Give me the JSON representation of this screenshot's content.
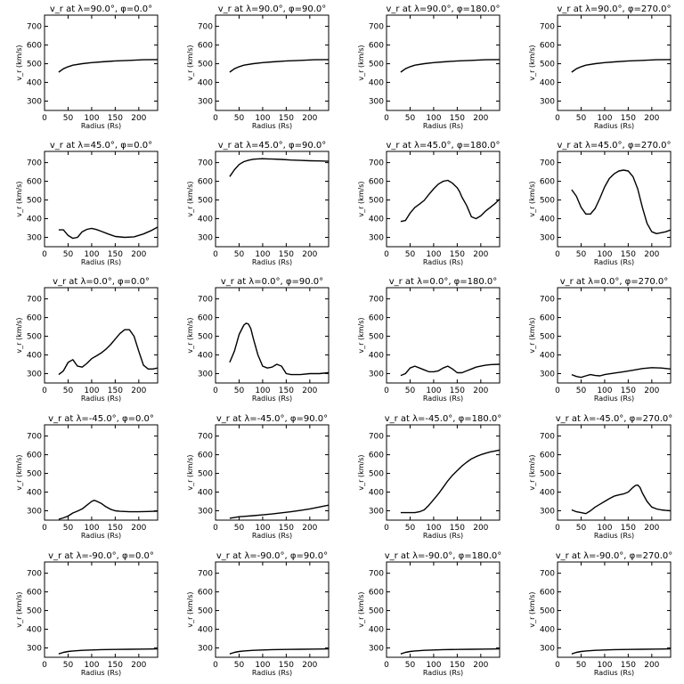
{
  "chart_data": [
    {
      "type": "line",
      "title": "v_r at λ=90.0°, φ=0.0°",
      "xlabel": "Radius (Rs)",
      "ylabel": "v_r (km/s)",
      "xlim": [
        0,
        240
      ],
      "ylim": [
        250,
        760
      ],
      "xticks": [
        0,
        50,
        100,
        150,
        200
      ],
      "yticks": [
        300,
        400,
        500,
        600,
        700
      ],
      "x": [
        30,
        40,
        50,
        60,
        80,
        100,
        120,
        150,
        180,
        210,
        240
      ],
      "values": [
        455,
        473,
        484,
        492,
        500,
        506,
        510,
        515,
        518,
        521,
        522
      ]
    },
    {
      "type": "line",
      "title": "v_r at λ=90.0°, φ=90.0°",
      "xlabel": "Radius (Rs)",
      "ylabel": "v_r (km/s)",
      "xlim": [
        0,
        240
      ],
      "ylim": [
        250,
        760
      ],
      "xticks": [
        0,
        50,
        100,
        150,
        200
      ],
      "yticks": [
        300,
        400,
        500,
        600,
        700
      ],
      "x": [
        30,
        40,
        50,
        60,
        80,
        100,
        120,
        150,
        180,
        210,
        240
      ],
      "values": [
        455,
        473,
        484,
        492,
        500,
        506,
        510,
        515,
        518,
        521,
        522
      ]
    },
    {
      "type": "line",
      "title": "v_r at λ=90.0°, φ=180.0°",
      "xlabel": "Radius (Rs)",
      "ylabel": "v_r (km/s)",
      "xlim": [
        0,
        240
      ],
      "ylim": [
        250,
        760
      ],
      "xticks": [
        0,
        50,
        100,
        150,
        200
      ],
      "yticks": [
        300,
        400,
        500,
        600,
        700
      ],
      "x": [
        30,
        40,
        50,
        60,
        80,
        100,
        120,
        150,
        180,
        210,
        240
      ],
      "values": [
        455,
        473,
        484,
        492,
        500,
        506,
        510,
        515,
        518,
        521,
        522
      ]
    },
    {
      "type": "line",
      "title": "v_r at λ=90.0°, φ=270.0°",
      "xlabel": "Radius (Rs)",
      "ylabel": "v_r (km/s)",
      "xlim": [
        0,
        240
      ],
      "ylim": [
        250,
        760
      ],
      "xticks": [
        0,
        50,
        100,
        150,
        200
      ],
      "yticks": [
        300,
        400,
        500,
        600,
        700
      ],
      "x": [
        30,
        40,
        50,
        60,
        80,
        100,
        120,
        150,
        180,
        210,
        240
      ],
      "values": [
        455,
        473,
        484,
        492,
        500,
        506,
        510,
        515,
        518,
        521,
        522
      ]
    },
    {
      "type": "line",
      "title": "v_r at λ=45.0°, φ=0.0°",
      "xlabel": "Radius (Rs)",
      "ylabel": "v_r (km/s)",
      "xlim": [
        0,
        240
      ],
      "ylim": [
        250,
        760
      ],
      "xticks": [
        0,
        50,
        100,
        150,
        200
      ],
      "yticks": [
        300,
        400,
        500,
        600,
        700
      ],
      "x": [
        30,
        40,
        50,
        60,
        70,
        80,
        90,
        100,
        110,
        120,
        135,
        150,
        170,
        190,
        210,
        225,
        240
      ],
      "values": [
        340,
        340,
        310,
        295,
        300,
        330,
        343,
        348,
        342,
        333,
        318,
        305,
        300,
        303,
        318,
        335,
        355
      ]
    },
    {
      "type": "line",
      "title": "v_r at λ=45.0°, φ=90.0°",
      "xlabel": "Radius (Rs)",
      "ylabel": "v_r (km/s)",
      "xlim": [
        0,
        240
      ],
      "ylim": [
        250,
        760
      ],
      "xticks": [
        0,
        50,
        100,
        150,
        200
      ],
      "yticks": [
        300,
        400,
        500,
        600,
        700
      ],
      "x": [
        30,
        40,
        50,
        60,
        70,
        80,
        90,
        100,
        110,
        120,
        140,
        160,
        180,
        200,
        220,
        240
      ],
      "values": [
        625,
        662,
        690,
        705,
        713,
        718,
        720,
        721,
        720,
        719,
        717,
        714,
        712,
        710,
        709,
        707
      ]
    },
    {
      "type": "line",
      "title": "v_r at λ=45.0°, φ=180.0°",
      "xlabel": "Radius (Rs)",
      "ylabel": "v_r (km/s)",
      "xlim": [
        0,
        240
      ],
      "ylim": [
        250,
        760
      ],
      "xticks": [
        0,
        50,
        100,
        150,
        200
      ],
      "yticks": [
        300,
        400,
        500,
        600,
        700
      ],
      "x": [
        30,
        40,
        50,
        60,
        70,
        80,
        90,
        100,
        110,
        120,
        130,
        140,
        150,
        155,
        160,
        170,
        180,
        190,
        200,
        210,
        220,
        230,
        240
      ],
      "values": [
        385,
        390,
        430,
        460,
        478,
        498,
        530,
        560,
        585,
        600,
        605,
        590,
        565,
        545,
        515,
        470,
        410,
        400,
        415,
        440,
        460,
        480,
        505
      ]
    },
    {
      "type": "line",
      "title": "v_r at λ=45.0°, φ=270.0°",
      "xlabel": "Radius (Rs)",
      "ylabel": "v_r (km/s)",
      "xlim": [
        0,
        240
      ],
      "ylim": [
        250,
        760
      ],
      "xticks": [
        0,
        50,
        100,
        150,
        200
      ],
      "yticks": [
        300,
        400,
        500,
        600,
        700
      ],
      "x": [
        30,
        40,
        50,
        60,
        70,
        80,
        90,
        100,
        110,
        120,
        130,
        140,
        150,
        160,
        170,
        180,
        190,
        200,
        210,
        220,
        230,
        240
      ],
      "values": [
        555,
        520,
        460,
        425,
        425,
        455,
        510,
        570,
        615,
        640,
        655,
        660,
        655,
        625,
        560,
        460,
        375,
        330,
        320,
        325,
        330,
        340
      ]
    },
    {
      "type": "line",
      "title": "v_r at λ=0.0°, φ=0.0°",
      "xlabel": "Radius (Rs)",
      "ylabel": "v_r (km/s)",
      "xlim": [
        0,
        240
      ],
      "ylim": [
        250,
        760
      ],
      "xticks": [
        0,
        50,
        100,
        150,
        200
      ],
      "yticks": [
        300,
        400,
        500,
        600,
        700
      ],
      "x": [
        30,
        40,
        50,
        60,
        70,
        80,
        90,
        100,
        110,
        120,
        130,
        140,
        150,
        160,
        170,
        180,
        190,
        200,
        210,
        220,
        230,
        240
      ],
      "values": [
        295,
        315,
        360,
        375,
        340,
        335,
        355,
        380,
        395,
        410,
        430,
        455,
        485,
        515,
        535,
        535,
        500,
        420,
        345,
        325,
        325,
        330
      ]
    },
    {
      "type": "line",
      "title": "v_r at λ=0.0°, φ=90.0°",
      "xlabel": "Radius (Rs)",
      "ylabel": "v_r (km/s)",
      "xlim": [
        0,
        240
      ],
      "ylim": [
        250,
        760
      ],
      "xticks": [
        0,
        50,
        100,
        150,
        200
      ],
      "yticks": [
        300,
        400,
        500,
        600,
        700
      ],
      "x": [
        30,
        40,
        50,
        60,
        65,
        70,
        75,
        80,
        90,
        100,
        110,
        120,
        130,
        140,
        150,
        160,
        180,
        200,
        220,
        240
      ],
      "values": [
        360,
        420,
        510,
        560,
        570,
        565,
        540,
        490,
        400,
        340,
        330,
        335,
        350,
        340,
        300,
        295,
        295,
        300,
        300,
        305
      ]
    },
    {
      "type": "line",
      "title": "v_r at λ=0.0°, φ=180.0°",
      "xlabel": "Radius (Rs)",
      "ylabel": "v_r (km/s)",
      "xlim": [
        0,
        240
      ],
      "ylim": [
        250,
        760
      ],
      "xticks": [
        0,
        50,
        100,
        150,
        200
      ],
      "yticks": [
        300,
        400,
        500,
        600,
        700
      ],
      "x": [
        30,
        40,
        50,
        60,
        70,
        80,
        90,
        100,
        110,
        120,
        130,
        140,
        150,
        160,
        170,
        180,
        190,
        200,
        210,
        220,
        240
      ],
      "values": [
        290,
        300,
        330,
        340,
        330,
        320,
        310,
        310,
        315,
        330,
        340,
        325,
        305,
        305,
        315,
        325,
        335,
        340,
        345,
        348,
        350
      ]
    },
    {
      "type": "line",
      "title": "v_r at λ=0.0°, φ=270.0°",
      "xlabel": "Radius (Rs)",
      "ylabel": "v_r (km/s)",
      "xlim": [
        0,
        240
      ],
      "ylim": [
        250,
        760
      ],
      "xticks": [
        0,
        50,
        100,
        150,
        200
      ],
      "yticks": [
        300,
        400,
        500,
        600,
        700
      ],
      "x": [
        30,
        40,
        50,
        60,
        70,
        80,
        90,
        100,
        120,
        140,
        160,
        180,
        200,
        220,
        240
      ],
      "values": [
        295,
        285,
        280,
        288,
        295,
        290,
        288,
        295,
        303,
        310,
        318,
        327,
        332,
        330,
        325
      ]
    },
    {
      "type": "line",
      "title": "v_r at λ=-45.0°, φ=0.0°",
      "xlabel": "Radius (Rs)",
      "ylabel": "v_r (km/s)",
      "xlim": [
        0,
        240
      ],
      "ylim": [
        250,
        760
      ],
      "xticks": [
        0,
        50,
        100,
        150,
        200
      ],
      "yticks": [
        300,
        400,
        500,
        600,
        700
      ],
      "x": [
        30,
        40,
        50,
        60,
        70,
        80,
        90,
        100,
        105,
        110,
        120,
        130,
        140,
        150,
        160,
        180,
        200,
        220,
        240
      ],
      "values": [
        255,
        262,
        272,
        288,
        298,
        310,
        330,
        350,
        356,
        352,
        340,
        322,
        308,
        300,
        297,
        295,
        295,
        296,
        298
      ]
    },
    {
      "type": "line",
      "title": "v_r at λ=-45.0°, φ=90.0°",
      "xlabel": "Radius (Rs)",
      "ylabel": "v_r (km/s)",
      "xlim": [
        0,
        240
      ],
      "ylim": [
        250,
        760
      ],
      "xticks": [
        0,
        50,
        100,
        150,
        200
      ],
      "yticks": [
        300,
        400,
        500,
        600,
        700
      ],
      "x": [
        30,
        40,
        50,
        60,
        80,
        100,
        120,
        140,
        160,
        180,
        200,
        220,
        240
      ],
      "values": [
        260,
        264,
        268,
        270,
        274,
        278,
        283,
        289,
        295,
        302,
        310,
        320,
        330
      ]
    },
    {
      "type": "line",
      "title": "v_r at λ=-45.0°, φ=180.0°",
      "xlabel": "Radius (Rs)",
      "ylabel": "v_r (km/s)",
      "xlim": [
        0,
        240
      ],
      "ylim": [
        250,
        760
      ],
      "xticks": [
        0,
        50,
        100,
        150,
        200
      ],
      "yticks": [
        300,
        400,
        500,
        600,
        700
      ],
      "x": [
        30,
        40,
        50,
        60,
        70,
        80,
        90,
        100,
        110,
        120,
        130,
        140,
        150,
        160,
        170,
        180,
        190,
        200,
        210,
        220,
        230,
        240
      ],
      "values": [
        290,
        290,
        290,
        290,
        295,
        305,
        330,
        360,
        390,
        425,
        460,
        490,
        515,
        540,
        560,
        578,
        590,
        600,
        608,
        615,
        620,
        625
      ]
    },
    {
      "type": "line",
      "title": "v_r at λ=-45.0°, φ=270.0°",
      "xlabel": "Radius (Rs)",
      "ylabel": "v_r (km/s)",
      "xlim": [
        0,
        240
      ],
      "ylim": [
        250,
        760
      ],
      "xticks": [
        0,
        50,
        100,
        150,
        200
      ],
      "yticks": [
        300,
        400,
        500,
        600,
        700
      ],
      "x": [
        30,
        40,
        50,
        60,
        70,
        80,
        90,
        100,
        110,
        120,
        130,
        140,
        150,
        160,
        165,
        170,
        175,
        180,
        190,
        200,
        210,
        220,
        230,
        240
      ],
      "values": [
        305,
        295,
        290,
        285,
        300,
        320,
        335,
        350,
        365,
        378,
        385,
        390,
        400,
        425,
        435,
        438,
        425,
        395,
        350,
        320,
        310,
        305,
        302,
        300
      ]
    },
    {
      "type": "line",
      "title": "v_r at λ=-90.0°, φ=0.0°",
      "xlabel": "Radius (Rs)",
      "ylabel": "v_r (km/s)",
      "xlim": [
        0,
        240
      ],
      "ylim": [
        250,
        760
      ],
      "xticks": [
        0,
        50,
        100,
        150,
        200
      ],
      "yticks": [
        300,
        400,
        500,
        600,
        700
      ],
      "x": [
        30,
        40,
        50,
        60,
        80,
        100,
        120,
        150,
        180,
        210,
        240
      ],
      "values": [
        268,
        276,
        281,
        284,
        287,
        289,
        291,
        292,
        293,
        294,
        295
      ]
    },
    {
      "type": "line",
      "title": "v_r at λ=-90.0°, φ=90.0°",
      "xlabel": "Radius (Rs)",
      "ylabel": "v_r (km/s)",
      "xlim": [
        0,
        240
      ],
      "ylim": [
        250,
        760
      ],
      "xticks": [
        0,
        50,
        100,
        150,
        200
      ],
      "yticks": [
        300,
        400,
        500,
        600,
        700
      ],
      "x": [
        30,
        40,
        50,
        60,
        80,
        100,
        120,
        150,
        180,
        210,
        240
      ],
      "values": [
        268,
        276,
        281,
        284,
        287,
        289,
        291,
        292,
        293,
        294,
        295
      ]
    },
    {
      "type": "line",
      "title": "v_r at λ=-90.0°, φ=180.0°",
      "xlabel": "Radius (Rs)",
      "ylabel": "v_r (km/s)",
      "xlim": [
        0,
        240
      ],
      "ylim": [
        250,
        760
      ],
      "xticks": [
        0,
        50,
        100,
        150,
        200
      ],
      "yticks": [
        300,
        400,
        500,
        600,
        700
      ],
      "x": [
        30,
        40,
        50,
        60,
        80,
        100,
        120,
        150,
        180,
        210,
        240
      ],
      "values": [
        268,
        276,
        281,
        284,
        287,
        289,
        291,
        292,
        293,
        294,
        295
      ]
    },
    {
      "type": "line",
      "title": "v_r at λ=-90.0°, φ=270.0°",
      "xlabel": "Radius (Rs)",
      "ylabel": "v_r (km/s)",
      "xlim": [
        0,
        240
      ],
      "ylim": [
        250,
        760
      ],
      "xticks": [
        0,
        50,
        100,
        150,
        200
      ],
      "yticks": [
        300,
        400,
        500,
        600,
        700
      ],
      "x": [
        30,
        40,
        50,
        60,
        80,
        100,
        120,
        150,
        180,
        210,
        240
      ],
      "values": [
        268,
        276,
        281,
        284,
        287,
        289,
        291,
        292,
        293,
        294,
        295
      ]
    }
  ]
}
